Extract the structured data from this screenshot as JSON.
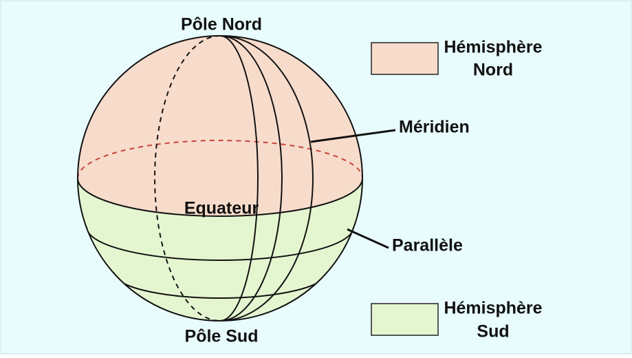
{
  "labels": {
    "north_pole": "Pôle Nord",
    "south_pole": "Pôle Sud",
    "equator": "Equateur",
    "meridian": "Méridien",
    "parallel": "Parallèle"
  },
  "legend": [
    {
      "lines": [
        "Hémisphère",
        "Nord"
      ]
    },
    {
      "lines": [
        "Hémisphère",
        "Sud"
      ]
    }
  ]
}
